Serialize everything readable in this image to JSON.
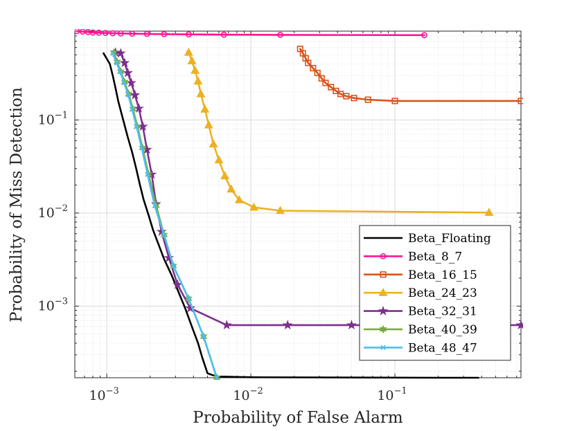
{
  "chart_data": {
    "type": "line",
    "title": "",
    "xlabel": "Probability of False Alarm",
    "ylabel": "Probability of Miss Detection",
    "xscale": "log",
    "yscale": "log",
    "xlim": [
      0.0006,
      0.75
    ],
    "ylim": [
      0.00017,
      0.9
    ],
    "grid": true,
    "minor_grid": true,
    "legend_position": "bottom-right",
    "xticks": [
      {
        "base": "10",
        "exp": "−3",
        "value": 0.001
      },
      {
        "base": "10",
        "exp": "−2",
        "value": 0.01
      },
      {
        "base": "10",
        "exp": "−1",
        "value": 0.1
      }
    ],
    "yticks": [
      {
        "base": "10",
        "exp": "−1",
        "value": 0.1
      },
      {
        "base": "10",
        "exp": "−2",
        "value": 0.01
      },
      {
        "base": "10",
        "exp": "−3",
        "value": 0.001
      }
    ],
    "series": [
      {
        "name": "Beta_Floating",
        "color": "#000000",
        "marker": "none",
        "x": [
          0.00095,
          0.00105,
          0.0011,
          0.00115,
          0.0012,
          0.0013,
          0.0014,
          0.0015,
          0.0016,
          0.0017,
          0.0018,
          0.00195,
          0.0021,
          0.0023,
          0.0025,
          0.0028,
          0.0031,
          0.0035,
          0.0039,
          0.0043,
          0.0046,
          0.005,
          0.0055,
          0.006,
          0.01,
          0.05,
          0.2,
          0.38
        ],
        "y": [
          0.52,
          0.4,
          0.3,
          0.22,
          0.16,
          0.1,
          0.065,
          0.045,
          0.03,
          0.02,
          0.014,
          0.0095,
          0.0065,
          0.0045,
          0.0032,
          0.0022,
          0.0015,
          0.00095,
          0.0006,
          0.0004,
          0.00028,
          0.00019,
          0.00018,
          0.000175,
          0.000172,
          0.000171,
          0.00017,
          0.00017
        ]
      },
      {
        "name": "Beta_8_7",
        "color": "#ff1493",
        "marker": "circle",
        "x": [
          0.00062,
          0.00068,
          0.00074,
          0.0008,
          0.00088,
          0.00098,
          0.0011,
          0.00125,
          0.0015,
          0.0019,
          0.0025,
          0.0037,
          0.0065,
          0.016,
          0.16
        ],
        "y": [
          0.9,
          0.89,
          0.88,
          0.87,
          0.865,
          0.86,
          0.855,
          0.85,
          0.845,
          0.84,
          0.835,
          0.83,
          0.825,
          0.82,
          0.815
        ]
      },
      {
        "name": "Beta_16_15",
        "color": "#d95319",
        "marker": "square",
        "x": [
          0.022,
          0.023,
          0.024,
          0.025,
          0.027,
          0.029,
          0.031,
          0.033,
          0.036,
          0.039,
          0.042,
          0.046,
          0.052,
          0.065,
          0.1,
          0.75
        ],
        "y": [
          0.58,
          0.52,
          0.46,
          0.41,
          0.36,
          0.32,
          0.28,
          0.25,
          0.225,
          0.205,
          0.19,
          0.18,
          0.172,
          0.165,
          0.16,
          0.16
        ]
      },
      {
        "name": "Beta_24_23",
        "color": "#edb120",
        "marker": "triangle",
        "x": [
          0.0037,
          0.0039,
          0.0041,
          0.0043,
          0.0045,
          0.0048,
          0.0051,
          0.0055,
          0.006,
          0.0066,
          0.0073,
          0.0083,
          0.0105,
          0.016,
          0.45
        ],
        "y": [
          0.53,
          0.43,
          0.34,
          0.26,
          0.19,
          0.13,
          0.088,
          0.055,
          0.037,
          0.025,
          0.018,
          0.0138,
          0.0115,
          0.0106,
          0.0101
        ]
      },
      {
        "name": "Beta_32_31",
        "color": "#7e2f8e",
        "marker": "star",
        "x": [
          0.00115,
          0.00125,
          0.00133,
          0.0014,
          0.00148,
          0.00157,
          0.00167,
          0.00178,
          0.0019,
          0.00205,
          0.0022,
          0.0024,
          0.0027,
          0.0031,
          0.0038,
          0.0068,
          0.018,
          0.05,
          0.15,
          0.75
        ],
        "y": [
          0.53,
          0.52,
          0.41,
          0.32,
          0.25,
          0.185,
          0.133,
          0.085,
          0.048,
          0.026,
          0.0125,
          0.0063,
          0.0033,
          0.0017,
          0.00095,
          0.000625,
          0.000625,
          0.000625,
          0.000625,
          0.000625
        ]
      },
      {
        "name": "Beta_40_39",
        "color": "#77ac30",
        "marker": "hexagram",
        "x": [
          0.00112,
          0.00118,
          0.00125,
          0.00133,
          0.00142,
          0.00152,
          0.00163,
          0.00177,
          0.00195,
          0.0022,
          0.0025,
          0.0029,
          0.0037,
          0.0047,
          0.0058
        ],
        "y": [
          0.53,
          0.42,
          0.33,
          0.255,
          0.19,
          0.13,
          0.085,
          0.05,
          0.026,
          0.012,
          0.0058,
          0.0027,
          0.0012,
          0.00047,
          0.00017
        ]
      },
      {
        "name": "Beta_48_47",
        "color": "#4dbeee",
        "marker": "x",
        "x": [
          0.0011,
          0.00117,
          0.00124,
          0.00132,
          0.00141,
          0.0015,
          0.00161,
          0.00175,
          0.00192,
          0.00215,
          0.0025,
          0.0029,
          0.0037,
          0.0047,
          0.0058
        ],
        "y": [
          0.52,
          0.41,
          0.33,
          0.25,
          0.185,
          0.13,
          0.085,
          0.05,
          0.026,
          0.012,
          0.0058,
          0.0027,
          0.0012,
          0.00047,
          0.00017
        ]
      }
    ]
  }
}
